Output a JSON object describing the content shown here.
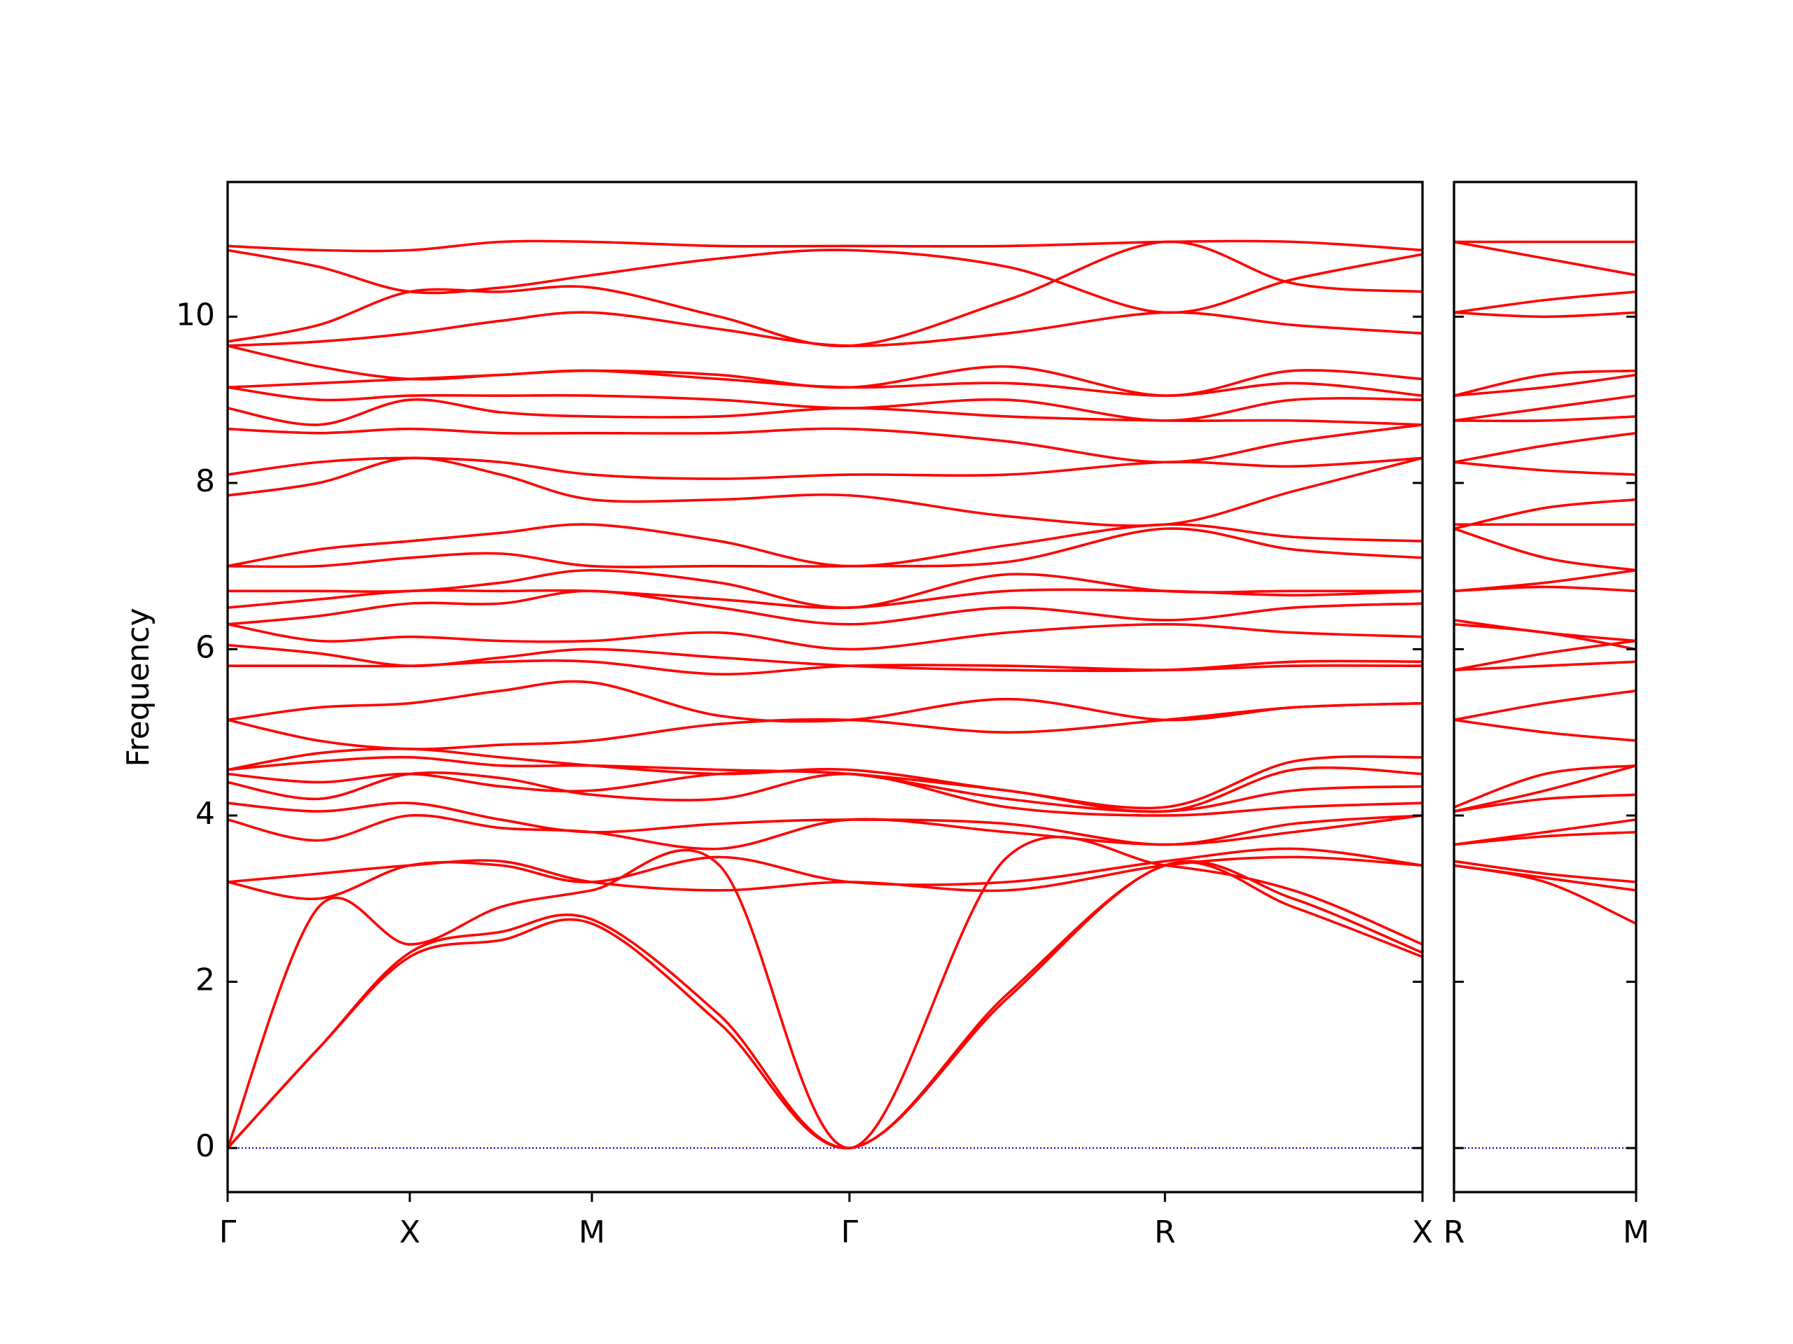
{
  "chart_data": [
    {
      "type": "line",
      "ylabel": "Frequency",
      "color": "#ff0000",
      "zero_line": {
        "value": 0,
        "color": "#0000cc"
      },
      "ylim": [
        -0.53,
        11.62
      ],
      "yticks": [
        0,
        2,
        4,
        6,
        8,
        10
      ],
      "xlim": [
        0,
        6.56
      ],
      "xticks": [
        {
          "value": 0,
          "label": "Γ"
        },
        {
          "value": 1,
          "label": "X"
        },
        {
          "value": 2,
          "label": "M"
        },
        {
          "value": 3.414,
          "label": "Γ"
        },
        {
          "value": 5.146,
          "label": "R"
        },
        {
          "value": 6.56,
          "label": "X"
        }
      ],
      "x": [
        0,
        0.5,
        1,
        1.5,
        2,
        2.7,
        3.414,
        4.28,
        5.146,
        5.85,
        6.56
      ],
      "series": [
        {
          "values": [
            0,
            1.2,
            2.3,
            2.5,
            2.7,
            1.5,
            0,
            1.8,
            3.4,
            2.9,
            2.3
          ]
        },
        {
          "values": [
            0,
            1.2,
            2.35,
            2.6,
            2.75,
            1.6,
            0,
            1.85,
            3.4,
            3.0,
            2.35
          ]
        },
        {
          "values": [
            0,
            2.9,
            2.45,
            2.9,
            3.1,
            3.4,
            0,
            3.5,
            3.4,
            3.1,
            2.45
          ]
        },
        {
          "values": [
            3.2,
            3.3,
            3.4,
            3.45,
            3.2,
            3.1,
            3.2,
            3.1,
            3.4,
            3.5,
            3.4
          ]
        },
        {
          "values": [
            3.2,
            3.0,
            3.4,
            3.4,
            3.2,
            3.5,
            3.2,
            3.2,
            3.45,
            3.6,
            3.4
          ]
        },
        {
          "values": [
            3.95,
            3.7,
            4.0,
            3.85,
            3.8,
            3.6,
            3.95,
            3.8,
            3.65,
            3.8,
            4.0
          ]
        },
        {
          "values": [
            4.15,
            4.05,
            4.15,
            3.95,
            3.8,
            3.9,
            3.95,
            3.9,
            3.65,
            3.9,
            4.0
          ]
        },
        {
          "values": [
            4.4,
            4.2,
            4.5,
            4.45,
            4.25,
            4.2,
            4.5,
            4.1,
            4.0,
            4.1,
            4.15
          ]
        },
        {
          "values": [
            4.5,
            4.4,
            4.5,
            4.35,
            4.3,
            4.5,
            4.5,
            4.2,
            4.05,
            4.3,
            4.35
          ]
        },
        {
          "values": [
            4.55,
            4.65,
            4.7,
            4.6,
            4.6,
            4.55,
            4.5,
            4.3,
            4.05,
            4.55,
            4.5
          ]
        },
        {
          "values": [
            4.55,
            4.75,
            4.8,
            4.7,
            4.6,
            4.5,
            4.55,
            4.3,
            4.1,
            4.65,
            4.7
          ]
        },
        {
          "values": [
            5.15,
            4.9,
            4.8,
            4.85,
            4.9,
            5.1,
            5.15,
            5.0,
            5.15,
            5.3,
            5.35
          ]
        },
        {
          "values": [
            5.15,
            5.3,
            5.35,
            5.5,
            5.6,
            5.2,
            5.15,
            5.4,
            5.15,
            5.3,
            5.35
          ]
        },
        {
          "values": [
            5.8,
            5.8,
            5.8,
            5.85,
            5.85,
            5.7,
            5.8,
            5.8,
            5.75,
            5.8,
            5.8
          ]
        },
        {
          "values": [
            6.05,
            5.95,
            5.8,
            5.9,
            6.0,
            5.9,
            5.8,
            5.75,
            5.75,
            5.85,
            5.85
          ]
        },
        {
          "values": [
            6.3,
            6.1,
            6.15,
            6.1,
            6.1,
            6.2,
            6.0,
            6.2,
            6.3,
            6.2,
            6.15
          ]
        },
        {
          "values": [
            6.3,
            6.4,
            6.55,
            6.55,
            6.7,
            6.5,
            6.3,
            6.5,
            6.35,
            6.5,
            6.55
          ]
        },
        {
          "values": [
            6.5,
            6.6,
            6.7,
            6.7,
            6.7,
            6.6,
            6.5,
            6.7,
            6.7,
            6.65,
            6.7
          ]
        },
        {
          "values": [
            6.7,
            6.7,
            6.7,
            6.8,
            6.95,
            6.8,
            6.5,
            6.9,
            6.7,
            6.7,
            6.7
          ]
        },
        {
          "values": [
            7.0,
            7.0,
            7.1,
            7.15,
            7.0,
            7.0,
            7.0,
            7.05,
            7.45,
            7.2,
            7.1
          ]
        },
        {
          "values": [
            7.0,
            7.2,
            7.3,
            7.4,
            7.5,
            7.3,
            7.0,
            7.25,
            7.5,
            7.35,
            7.3
          ]
        },
        {
          "values": [
            7.85,
            8.0,
            8.3,
            8.1,
            7.8,
            7.8,
            7.85,
            7.6,
            7.5,
            7.9,
            8.3
          ]
        },
        {
          "values": [
            8.1,
            8.25,
            8.3,
            8.25,
            8.1,
            8.05,
            8.1,
            8.1,
            8.25,
            8.2,
            8.3
          ]
        },
        {
          "values": [
            8.65,
            8.6,
            8.65,
            8.6,
            8.6,
            8.6,
            8.65,
            8.5,
            8.25,
            8.5,
            8.7
          ]
        },
        {
          "values": [
            8.9,
            8.7,
            9.0,
            8.85,
            8.8,
            8.8,
            8.9,
            8.8,
            8.75,
            8.75,
            8.7
          ]
        },
        {
          "values": [
            9.15,
            9.0,
            9.05,
            9.05,
            9.05,
            9.0,
            8.9,
            9.0,
            8.75,
            9.0,
            9.0
          ]
        },
        {
          "values": [
            9.15,
            9.2,
            9.25,
            9.3,
            9.35,
            9.25,
            9.15,
            9.2,
            9.05,
            9.2,
            9.05
          ]
        },
        {
          "values": [
            9.65,
            9.4,
            9.25,
            9.3,
            9.35,
            9.3,
            9.15,
            9.4,
            9.05,
            9.35,
            9.25
          ]
        },
        {
          "values": [
            9.65,
            9.7,
            9.8,
            9.95,
            10.05,
            9.85,
            9.65,
            9.8,
            10.05,
            9.9,
            9.8
          ]
        },
        {
          "values": [
            9.7,
            9.9,
            10.3,
            10.3,
            10.35,
            10.0,
            9.65,
            10.2,
            10.9,
            10.4,
            10.3
          ]
        },
        {
          "values": [
            10.8,
            10.6,
            10.3,
            10.35,
            10.5,
            10.7,
            10.8,
            10.6,
            10.05,
            10.45,
            10.75
          ]
        },
        {
          "values": [
            10.85,
            10.8,
            10.8,
            10.9,
            10.9,
            10.85,
            10.85,
            10.85,
            10.9,
            10.9,
            10.8
          ]
        }
      ]
    },
    {
      "type": "line",
      "color": "#ff0000",
      "zero_line": {
        "value": 0,
        "color": "#0000cc"
      },
      "ylim": [
        -0.53,
        11.62
      ],
      "yticks": [
        0,
        2,
        4,
        6,
        8,
        10
      ],
      "xlim": [
        0,
        1
      ],
      "xticks": [
        {
          "value": 0,
          "label": "R"
        },
        {
          "value": 1,
          "label": "M"
        }
      ],
      "x": [
        0,
        0.5,
        1
      ],
      "series": [
        {
          "values": [
            3.4,
            3.2,
            2.7
          ]
        },
        {
          "values": [
            3.4,
            3.25,
            3.1
          ]
        },
        {
          "values": [
            3.45,
            3.3,
            3.2
          ]
        },
        {
          "values": [
            3.65,
            3.75,
            3.8
          ]
        },
        {
          "values": [
            3.65,
            3.8,
            3.95
          ]
        },
        {
          "values": [
            4.05,
            4.2,
            4.25
          ]
        },
        {
          "values": [
            4.05,
            4.3,
            4.6
          ]
        },
        {
          "values": [
            4.1,
            4.5,
            4.6
          ]
        },
        {
          "values": [
            5.15,
            5.0,
            4.9
          ]
        },
        {
          "values": [
            5.15,
            5.35,
            5.5
          ]
        },
        {
          "values": [
            5.75,
            5.8,
            5.85
          ]
        },
        {
          "values": [
            5.75,
            5.95,
            6.1
          ]
        },
        {
          "values": [
            6.3,
            6.2,
            6.0
          ]
        },
        {
          "values": [
            6.35,
            6.2,
            6.1
          ]
        },
        {
          "values": [
            6.7,
            6.75,
            6.7
          ]
        },
        {
          "values": [
            6.7,
            6.8,
            6.95
          ]
        },
        {
          "values": [
            7.45,
            7.1,
            6.95
          ]
        },
        {
          "values": [
            7.5,
            7.5,
            7.5
          ]
        },
        {
          "values": [
            7.45,
            7.7,
            7.8
          ]
        },
        {
          "values": [
            8.25,
            8.15,
            8.1
          ]
        },
        {
          "values": [
            8.25,
            8.45,
            8.6
          ]
        },
        {
          "values": [
            8.75,
            8.75,
            8.8
          ]
        },
        {
          "values": [
            8.75,
            8.9,
            9.05
          ]
        },
        {
          "values": [
            9.05,
            9.15,
            9.3
          ]
        },
        {
          "values": [
            9.05,
            9.3,
            9.35
          ]
        },
        {
          "values": [
            10.05,
            10.0,
            10.05
          ]
        },
        {
          "values": [
            10.05,
            10.2,
            10.3
          ]
        },
        {
          "values": [
            10.9,
            10.9,
            10.9
          ]
        },
        {
          "values": [
            10.9,
            10.7,
            10.5
          ]
        }
      ]
    }
  ]
}
